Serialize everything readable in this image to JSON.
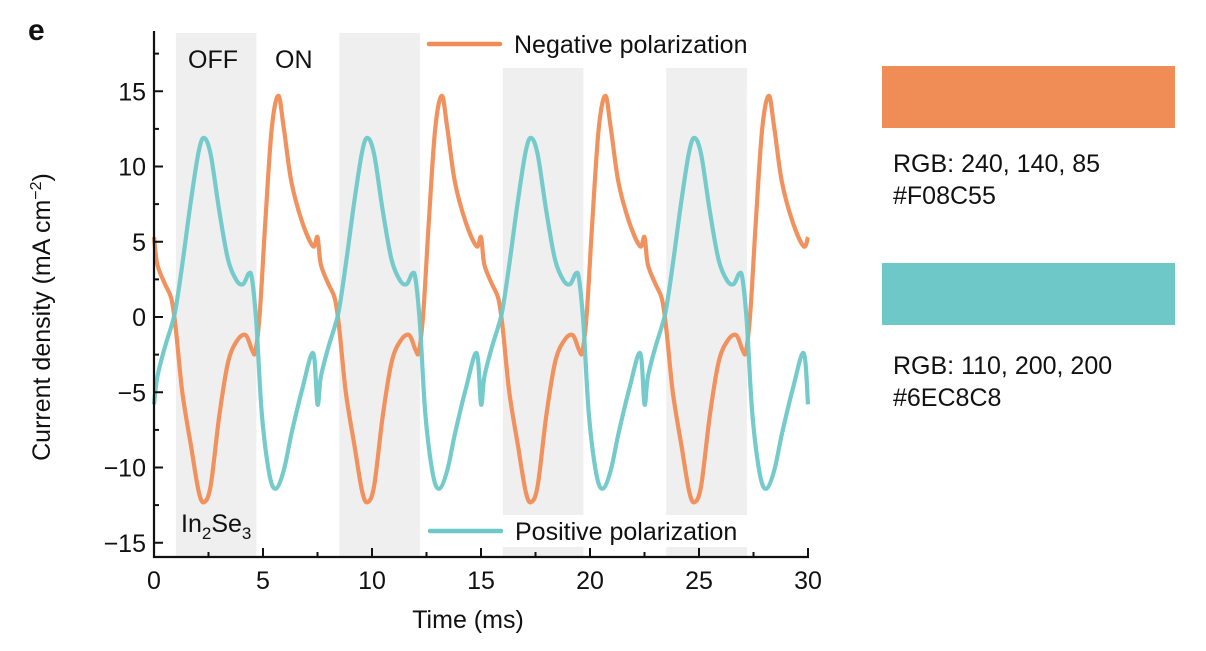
{
  "panel_label": "e",
  "colors": {
    "negative": "#F08C55",
    "positive": "#6EC8C8",
    "band": "#EFEFEF"
  },
  "swatches": [
    {
      "name": "orange",
      "color": "#F08C55",
      "rgb_label": "RGB: 240, 140, 85",
      "hex_label": "#F08C55"
    },
    {
      "name": "teal",
      "color": "#6EC8C8",
      "rgb_label": "RGB: 110, 200, 200",
      "hex_label": "#6EC8C8"
    }
  ],
  "chart_data": {
    "type": "line",
    "title": "",
    "xlabel": "Time (ms)",
    "ylabel": "Current density (mA cm⁻²)",
    "xlim": [
      0,
      30
    ],
    "ylim": [
      -16,
      19
    ],
    "xticks": [
      0,
      5,
      10,
      15,
      20,
      25,
      30
    ],
    "yticks": [
      -15,
      -10,
      -5,
      0,
      5,
      10,
      15
    ],
    "grid": false,
    "legend": [
      {
        "label": "Negative polarization",
        "series": "negative",
        "placement": "top"
      },
      {
        "label": "Positive polarization",
        "series": "positive",
        "placement": "bottom"
      }
    ],
    "annotations": {
      "off": "OFF",
      "on": "ON",
      "material": "In",
      "material_sub1": "2",
      "material_mid": "Se",
      "material_sub2": "3"
    },
    "off_bands_ms": [
      [
        1.0,
        4.7
      ],
      [
        8.5,
        12.2
      ],
      [
        16.0,
        19.7
      ],
      [
        23.5,
        27.2
      ]
    ],
    "period_ms": 7.5,
    "series": [
      {
        "name": "Negative polarization",
        "key": "negative",
        "cycle_t": [
          0.0,
          0.15,
          0.5,
          0.8,
          1.0,
          1.3,
          1.7,
          2.05,
          2.3,
          2.6,
          3.0,
          3.4,
          3.8,
          4.2,
          4.5,
          4.65,
          4.85,
          5.1,
          5.4,
          5.7,
          5.95,
          6.3,
          6.8,
          7.3,
          7.5
        ],
        "cycle_y": [
          5.3,
          3.5,
          2.2,
          1.2,
          -0.8,
          -5.0,
          -8.6,
          -11.6,
          -12.3,
          -11.2,
          -6.5,
          -3.0,
          -1.6,
          -1.2,
          -2.2,
          -2.3,
          0.2,
          6.2,
          12.5,
          14.7,
          12.6,
          9.0,
          6.3,
          4.7,
          3.8
        ]
      },
      {
        "name": "Positive polarization",
        "key": "positive",
        "cycle_t": [
          0.0,
          0.15,
          0.5,
          0.8,
          1.0,
          1.3,
          1.7,
          2.05,
          2.3,
          2.6,
          3.0,
          3.4,
          3.8,
          4.1,
          4.35,
          4.5,
          4.7,
          4.95,
          5.3,
          5.6,
          5.95,
          6.3,
          6.8,
          7.3,
          7.5
        ],
        "cycle_y": [
          -5.8,
          -4.0,
          -2.0,
          -0.6,
          0.6,
          3.5,
          7.8,
          11.0,
          11.9,
          10.8,
          7.0,
          3.8,
          2.4,
          2.2,
          2.9,
          2.5,
          -0.5,
          -6.5,
          -10.5,
          -11.4,
          -10.2,
          -7.8,
          -4.8,
          -2.4,
          -1.0
        ]
      }
    ]
  }
}
